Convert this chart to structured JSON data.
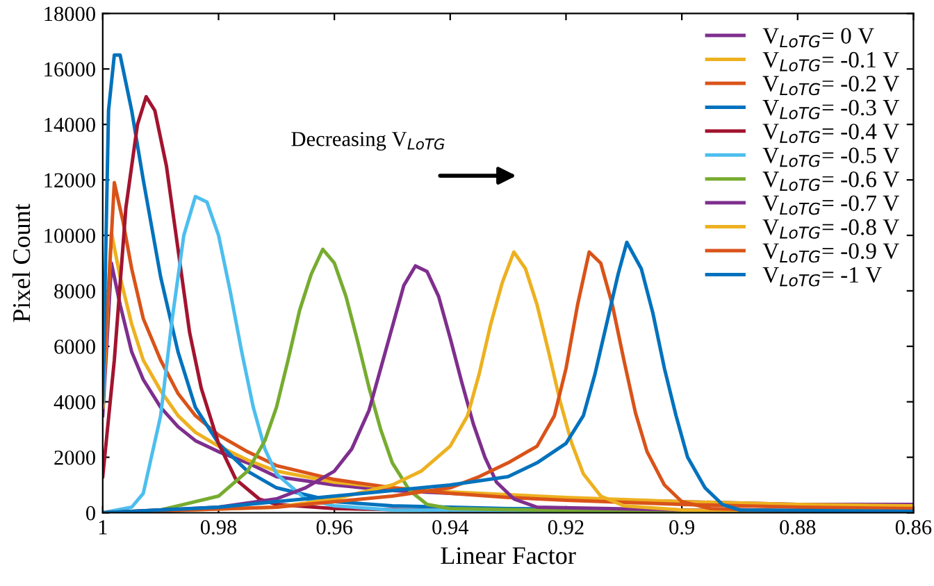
{
  "chart_data": {
    "type": "line",
    "xlabel": "Linear Factor",
    "ylabel": "Pixel Count",
    "annotations": [
      "Decreasing V$_{LoTG}$"
    ],
    "xlim": [
      1,
      0.86
    ],
    "xticks": [
      1,
      0.98,
      0.96,
      0.94,
      0.92,
      0.9,
      0.88,
      0.86
    ],
    "ylim": [
      0,
      18000
    ],
    "yticks": [
      0,
      2000,
      4000,
      6000,
      8000,
      10000,
      12000,
      14000,
      16000,
      18000
    ],
    "grid": false,
    "legend": "top right",
    "marker": "none",
    "line_style": "solid",
    "series": [
      {
        "name": "V$_{LoTG}$= 0 V",
        "color": "#7e2f8e",
        "x": [
          1,
          0.9985,
          0.997,
          0.995,
          0.993,
          0.99,
          0.987,
          0.984,
          0.98,
          0.975,
          0.97,
          0.96,
          0.95,
          0.94,
          0.93,
          0.92,
          0.9,
          0.88,
          0.86
        ],
        "values": [
          3500,
          9000,
          7500,
          5800,
          4800,
          3800,
          3100,
          2600,
          2200,
          1800,
          1300,
          1000,
          800,
          700,
          600,
          500,
          400,
          300,
          300
        ]
      },
      {
        "name": "V$_{LoTG}$= -0.1 V",
        "color": "#edb120",
        "x": [
          1,
          0.9985,
          0.997,
          0.995,
          0.993,
          0.99,
          0.987,
          0.984,
          0.98,
          0.975,
          0.97,
          0.96,
          0.95,
          0.94,
          0.93,
          0.92,
          0.9,
          0.88,
          0.86
        ],
        "values": [
          3800,
          10100,
          8500,
          6800,
          5500,
          4400,
          3500,
          2900,
          2400,
          1900,
          1500,
          1100,
          900,
          750,
          650,
          550,
          400,
          300,
          250
        ]
      },
      {
        "name": "V$_{LoTG}$= -0.2 V",
        "color": "#d95319",
        "x": [
          1,
          0.998,
          0.9965,
          0.995,
          0.993,
          0.99,
          0.987,
          0.984,
          0.98,
          0.975,
          0.97,
          0.96,
          0.95,
          0.94,
          0.93,
          0.92,
          0.9,
          0.88,
          0.86
        ],
        "values": [
          4300,
          11900,
          10500,
          8800,
          7000,
          5500,
          4300,
          3500,
          2800,
          2200,
          1700,
          1200,
          900,
          700,
          550,
          450,
          300,
          200,
          150
        ]
      },
      {
        "name": "V$_{LoTG}$= -0.3 V",
        "color": "#0072bd",
        "x": [
          1,
          0.999,
          0.998,
          0.997,
          0.995,
          0.993,
          0.99,
          0.987,
          0.984,
          0.98,
          0.975,
          0.97,
          0.96,
          0.95,
          0.93,
          0.9,
          0.86
        ],
        "values": [
          4000,
          14500,
          16500,
          16500,
          14500,
          12000,
          8500,
          5800,
          3800,
          2500,
          1500,
          900,
          400,
          250,
          150,
          100,
          50
        ]
      },
      {
        "name": "V$_{LoTG}$= -0.4 V",
        "color": "#a2142f",
        "x": [
          1,
          0.998,
          0.996,
          0.994,
          0.9925,
          0.991,
          0.989,
          0.987,
          0.985,
          0.983,
          0.98,
          0.977,
          0.973,
          0.97,
          0.96,
          0.94,
          0.9,
          0.86
        ],
        "values": [
          1300,
          5500,
          11000,
          14000,
          15000,
          14500,
          12500,
          9500,
          6500,
          4500,
          2500,
          1200,
          500,
          300,
          150,
          80,
          50,
          30
        ]
      },
      {
        "name": "V$_{LoTG}$= -0.5 V",
        "color": "#4dbeee",
        "x": [
          1,
          0.995,
          0.993,
          0.99,
          0.988,
          0.986,
          0.984,
          0.982,
          0.98,
          0.978,
          0.976,
          0.974,
          0.972,
          0.97,
          0.965,
          0.96,
          0.95,
          0.9,
          0.86
        ],
        "values": [
          0,
          200,
          700,
          3500,
          7000,
          10000,
          11400,
          11200,
          10000,
          8000,
          5800,
          3800,
          2300,
          1400,
          500,
          250,
          100,
          50,
          30
        ]
      },
      {
        "name": "V$_{LoTG}$= -0.6 V",
        "color": "#77ac30",
        "x": [
          1,
          0.99,
          0.98,
          0.975,
          0.972,
          0.97,
          0.968,
          0.966,
          0.964,
          0.962,
          0.96,
          0.958,
          0.956,
          0.954,
          0.952,
          0.95,
          0.947,
          0.944,
          0.94,
          0.92,
          0.86
        ],
        "values": [
          0,
          100,
          600,
          1500,
          2600,
          3800,
          5500,
          7300,
          8600,
          9500,
          9000,
          7800,
          6200,
          4500,
          3000,
          1800,
          800,
          300,
          150,
          80,
          50
        ]
      },
      {
        "name": "V$_{LoTG}$= -0.7 V",
        "color": "#7e2f8e",
        "x": [
          1,
          0.98,
          0.97,
          0.965,
          0.96,
          0.957,
          0.954,
          0.952,
          0.95,
          0.948,
          0.946,
          0.944,
          0.942,
          0.94,
          0.938,
          0.936,
          0.934,
          0.932,
          0.929,
          0.925,
          0.9,
          0.86
        ],
        "values": [
          0,
          200,
          500,
          900,
          1500,
          2300,
          3700,
          5200,
          6700,
          8200,
          8900,
          8700,
          7800,
          6300,
          4700,
          3200,
          2000,
          1100,
          500,
          200,
          100,
          50
        ]
      },
      {
        "name": "V$_{LoTG}$= -0.8 V",
        "color": "#edb120",
        "x": [
          1,
          0.97,
          0.96,
          0.95,
          0.945,
          0.94,
          0.937,
          0.935,
          0.933,
          0.931,
          0.929,
          0.927,
          0.925,
          0.923,
          0.921,
          0.919,
          0.917,
          0.914,
          0.91,
          0.9,
          0.86
        ],
        "values": [
          0,
          200,
          500,
          1000,
          1500,
          2400,
          3500,
          5000,
          6800,
          8300,
          9400,
          8800,
          7500,
          5800,
          4000,
          2500,
          1400,
          600,
          250,
          100,
          50
        ]
      },
      {
        "name": "V$_{LoTG}$= -0.9 V",
        "color": "#d95319",
        "x": [
          1,
          0.97,
          0.96,
          0.95,
          0.94,
          0.935,
          0.93,
          0.925,
          0.922,
          0.92,
          0.918,
          0.916,
          0.914,
          0.912,
          0.91,
          0.908,
          0.906,
          0.903,
          0.9,
          0.895,
          0.88,
          0.86
        ],
        "values": [
          0,
          200,
          400,
          600,
          900,
          1300,
          1800,
          2400,
          3500,
          5200,
          7500,
          9400,
          9000,
          7500,
          5500,
          3600,
          2200,
          1000,
          400,
          150,
          50,
          30
        ]
      },
      {
        "name": "V$_{LoTG}$= -1 V",
        "color": "#0072bd",
        "x": [
          1,
          0.98,
          0.97,
          0.96,
          0.95,
          0.94,
          0.93,
          0.925,
          0.92,
          0.917,
          0.915,
          0.913,
          0.911,
          0.9095,
          0.907,
          0.905,
          0.903,
          0.901,
          0.899,
          0.896,
          0.893,
          0.89,
          0.86
        ],
        "values": [
          0,
          200,
          400,
          600,
          800,
          1000,
          1300,
          1800,
          2500,
          3500,
          5000,
          6800,
          8600,
          9750,
          8800,
          7200,
          5200,
          3500,
          2000,
          900,
          300,
          100,
          50
        ]
      }
    ]
  }
}
